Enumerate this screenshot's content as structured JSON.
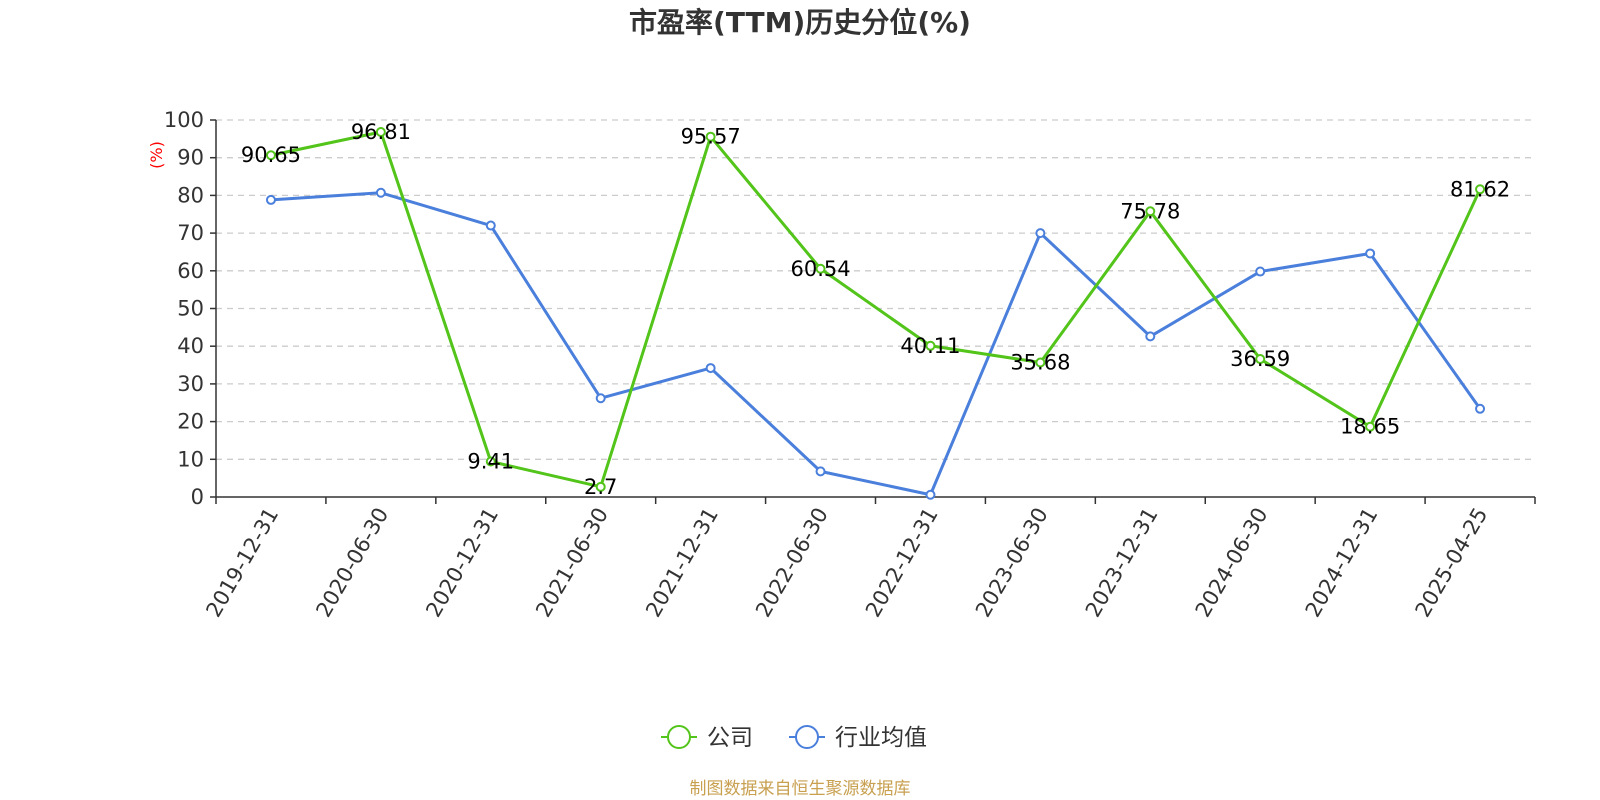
{
  "chart_data": {
    "type": "line",
    "title": "市盈率(TTM)历史分位(%)",
    "ylabel": "(%)",
    "ylim": [
      0,
      100
    ],
    "yticks": [
      0,
      10,
      20,
      30,
      40,
      50,
      60,
      70,
      80,
      90,
      100
    ],
    "grid": true,
    "legend_position": "bottom",
    "categories": [
      "2019-12-31",
      "2020-06-30",
      "2020-12-31",
      "2021-06-30",
      "2021-12-31",
      "2022-06-30",
      "2022-12-31",
      "2023-06-30",
      "2023-12-31",
      "2024-06-30",
      "2024-12-31",
      "2025-04-25"
    ],
    "series": [
      {
        "name": "公司",
        "color": "#52c41a",
        "show_labels": true,
        "values": [
          90.65,
          96.81,
          9.41,
          2.7,
          95.57,
          60.54,
          40.11,
          35.68,
          75.78,
          36.59,
          18.65,
          81.62
        ]
      },
      {
        "name": "行业均值",
        "color": "#4a7fdc",
        "show_labels": false,
        "values": [
          78.8,
          80.7,
          72.0,
          26.2,
          34.2,
          6.8,
          0.6,
          70.0,
          42.6,
          59.8,
          64.6,
          23.4
        ]
      }
    ]
  },
  "source_text": "制图数据来自恒生聚源数据库",
  "colors": {
    "source": "#c8a050",
    "ylabel": "#ff0000",
    "grid": "#cccccc",
    "axis": "#333333"
  }
}
